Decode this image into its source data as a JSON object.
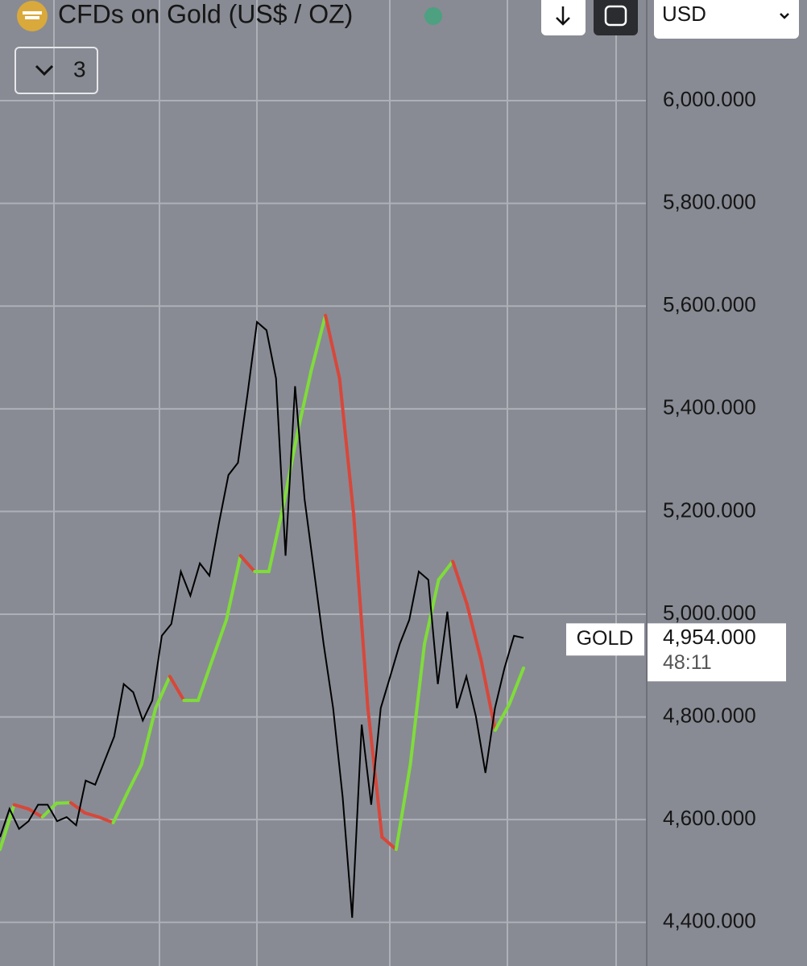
{
  "chart_data": {
    "type": "line",
    "title": "CFDs on Gold (US$ / OZ)",
    "indicator_count": "3",
    "currency": "USD",
    "symbol": "GOLD",
    "last_price": {
      "value": 4954,
      "label": "4,954.000"
    },
    "countdown": "48:11",
    "ylim": [
      4315,
      6196
    ],
    "yticks": [
      {
        "value": 4400,
        "label": "4,400.000"
      },
      {
        "value": 4600,
        "label": "4,600.000"
      },
      {
        "value": 4800,
        "label": "4,800.000"
      },
      {
        "value": 5000,
        "label": "5,000.000"
      },
      {
        "value": 5200,
        "label": "5,200.000"
      },
      {
        "value": 5400,
        "label": "5,400.000"
      },
      {
        "value": 5600,
        "label": "5,600.000"
      },
      {
        "value": 5800,
        "label": "5,800.000"
      },
      {
        "value": 6000,
        "label": "6,000.000"
      }
    ],
    "grid": true,
    "series": [
      {
        "color": "#000000",
        "values": [
          4566,
          4621,
          4582,
          4597,
          4629,
          4629,
          4597,
          4605,
          4589,
          4676,
          4668,
          4715,
          4762,
          4864,
          4848,
          4793,
          4832,
          4958,
          4981,
          5083,
          5036,
          5099,
          5075,
          5177,
          5271,
          5295,
          5428,
          5569,
          5553,
          5459,
          5114,
          5444,
          5224,
          5083,
          4942,
          4817,
          4644,
          4409,
          4785,
          4629,
          4817,
          4879,
          4942,
          4989,
          5083,
          5067,
          4864,
          5005,
          4817,
          4879,
          4801,
          4691,
          4817,
          4895,
          4958,
          4954
        ]
      },
      {
        "up_color": "#7fdc3a",
        "down_color": "#d8473a",
        "values": [
          4542,
          4629,
          4621,
          4605,
          4632,
          4633,
          4613,
          4605,
          4594,
          4652,
          4707,
          4817,
          4879,
          4832,
          4832,
          4911,
          4989,
          5114,
          5083,
          5083,
          5208,
          5350,
          5475,
          5582,
          5459,
          5193,
          4817,
          4566,
          4542,
          4707,
          4942,
          5067,
          5103,
          5020,
          4911,
          4774,
          4825,
          4895
        ]
      }
    ]
  }
}
